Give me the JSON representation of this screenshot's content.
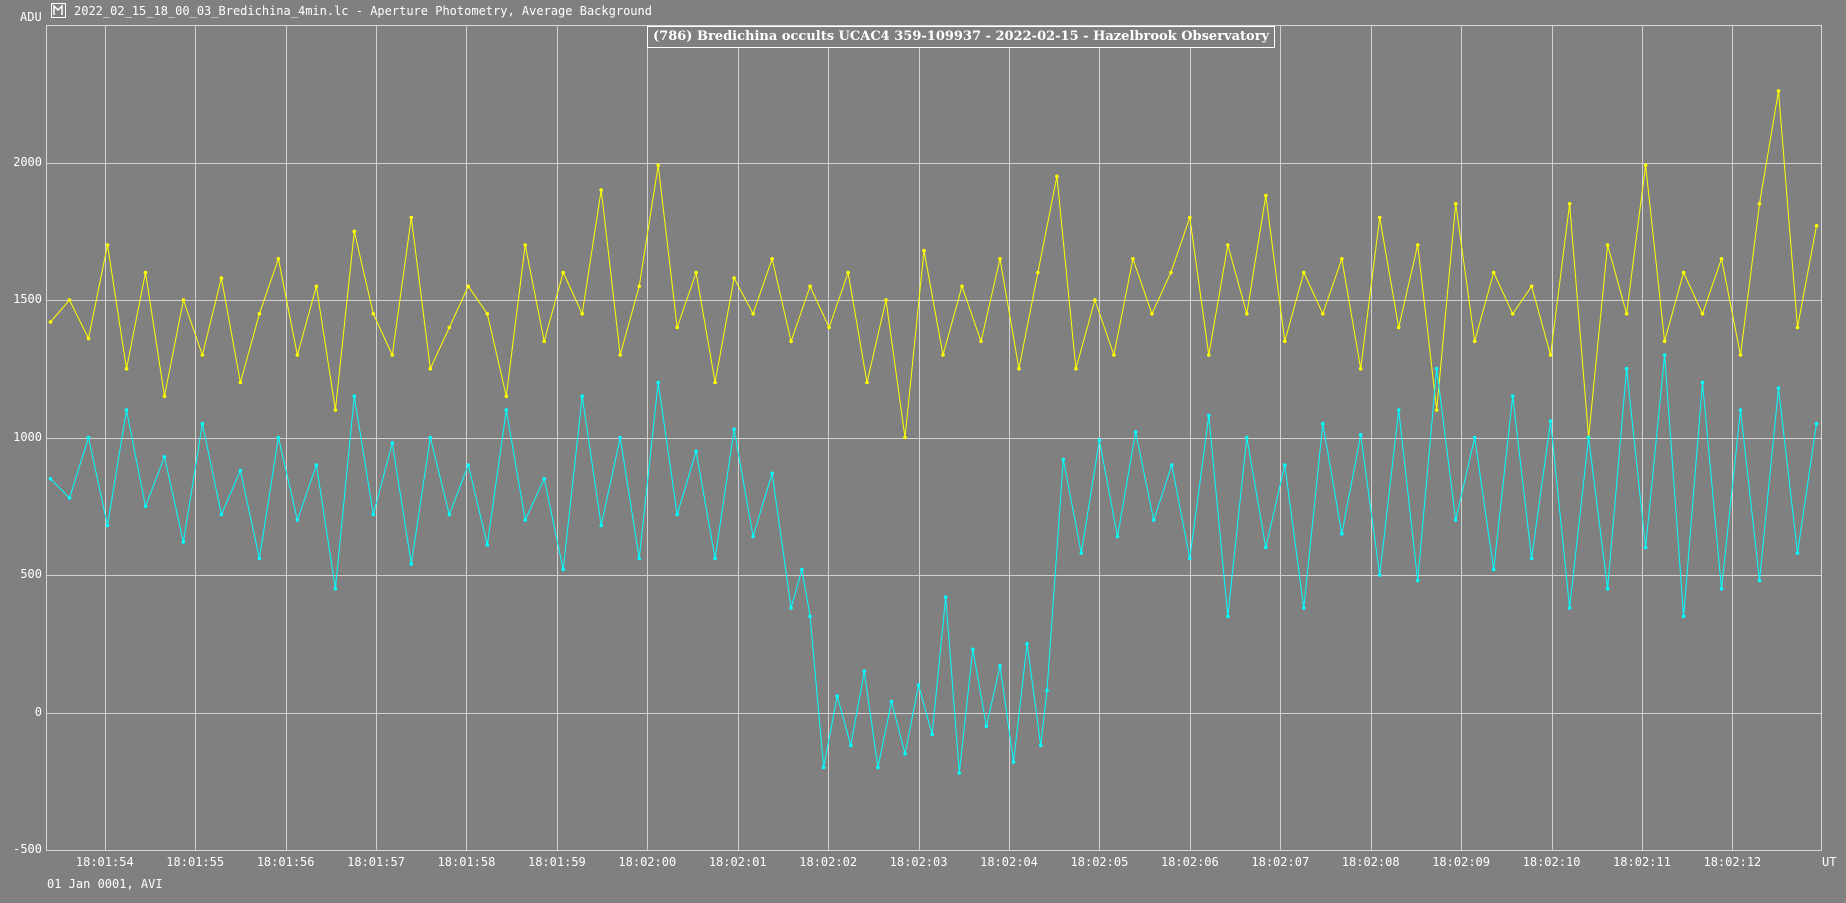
{
  "window": {
    "title": "2022_02_15_18_00_03_Bredichina_4min.lc - Aperture Photometry, Average Background",
    "icon": "light-curve-app-icon"
  },
  "footer": {
    "text": "01 Jan 0001, AVI"
  },
  "chart_data": {
    "type": "line",
    "title": "(786) Bredichina occults UCAC4 359-109937 - 2022-02-15 - Hazelbrook Observatory",
    "ylabel": "ADU",
    "xlabel": "UT",
    "ylim": [
      -500,
      2500
    ],
    "xlim": [
      "18:01:53.35",
      "18:02:12.98"
    ],
    "y_ticks": [
      -500,
      0,
      500,
      1000,
      1500,
      2000
    ],
    "x_ticks": [
      "18:01:54",
      "18:01:55",
      "18:01:56",
      "18:01:57",
      "18:01:58",
      "18:01:59",
      "18:02:00",
      "18:02:01",
      "18:02:02",
      "18:02:03",
      "18:02:04",
      "18:02:05",
      "18:02:06",
      "18:02:07",
      "18:02:08",
      "18:02:09",
      "18:02:10",
      "18:02:11",
      "18:02:12"
    ],
    "grid": true,
    "marker": "dots",
    "series": [
      {
        "color": "#ffff00",
        "x": [
          "18:01:53.40",
          "18:01:53.61",
          "18:01:53.82",
          "18:01:54.03",
          "18:01:54.24",
          "18:01:54.45",
          "18:01:54.66",
          "18:01:54.87",
          "18:01:55.08",
          "18:01:55.29",
          "18:01:55.50",
          "18:01:55.71",
          "18:01:55.92",
          "18:01:56.13",
          "18:01:56.34",
          "18:01:56.55",
          "18:01:56.76",
          "18:01:56.97",
          "18:01:57.18",
          "18:01:57.39",
          "18:01:57.60",
          "18:01:57.81",
          "18:01:58.02",
          "18:01:58.23",
          "18:01:58.44",
          "18:01:58.65",
          "18:01:58.86",
          "18:01:59.07",
          "18:01:59.28",
          "18:01:59.49",
          "18:01:59.70",
          "18:01:59.91",
          "18:02:00.12",
          "18:02:00.33",
          "18:02:00.54",
          "18:02:00.75",
          "18:02:00.96",
          "18:02:01.17",
          "18:02:01.38",
          "18:02:01.59",
          "18:02:01.80",
          "18:02:02.01",
          "18:02:02.22",
          "18:02:02.43",
          "18:02:02.64",
          "18:02:02.85",
          "18:02:03.06",
          "18:02:03.27",
          "18:02:03.48",
          "18:02:03.69",
          "18:02:03.90",
          "18:02:04.11",
          "18:02:04.32",
          "18:02:04.53",
          "18:02:04.74",
          "18:02:04.95",
          "18:02:05.16",
          "18:02:05.37",
          "18:02:05.58",
          "18:02:05.79",
          "18:02:06.00",
          "18:02:06.21",
          "18:02:06.42",
          "18:02:06.63",
          "18:02:06.84",
          "18:02:07.05",
          "18:02:07.26",
          "18:02:07.47",
          "18:02:07.68",
          "18:02:07.89",
          "18:02:08.10",
          "18:02:08.31",
          "18:02:08.52",
          "18:02:08.73",
          "18:02:08.94",
          "18:02:09.15",
          "18:02:09.36",
          "18:02:09.57",
          "18:02:09.78",
          "18:02:09.99",
          "18:02:10.20",
          "18:02:10.41",
          "18:02:10.62",
          "18:02:10.83",
          "18:02:11.04",
          "18:02:11.25",
          "18:02:11.46",
          "18:02:11.67",
          "18:02:11.88",
          "18:02:12.09",
          "18:02:12.30",
          "18:02:12.51",
          "18:02:12.72",
          "18:02:12.93"
        ],
        "values": [
          1420,
          1500,
          1360,
          1700,
          1250,
          1600,
          1150,
          1500,
          1300,
          1580,
          1200,
          1450,
          1650,
          1300,
          1550,
          1100,
          1750,
          1450,
          1300,
          1800,
          1250,
          1400,
          1550,
          1450,
          1150,
          1700,
          1350,
          1600,
          1450,
          1900,
          1300,
          1550,
          1990,
          1400,
          1600,
          1200,
          1580,
          1450,
          1650,
          1350,
          1550,
          1400,
          1600,
          1200,
          1500,
          1000,
          1680,
          1300,
          1550,
          1350,
          1650,
          1250,
          1600,
          1950,
          1250,
          1500,
          1300,
          1650,
          1450,
          1600,
          1800,
          1300,
          1700,
          1450,
          1880,
          1350,
          1600,
          1450,
          1650,
          1250,
          1800,
          1400,
          1700,
          1100,
          1850,
          1350,
          1600,
          1450,
          1550,
          1300,
          1850,
          1000,
          1700,
          1450,
          1990,
          1350,
          1600,
          1450,
          1650,
          1300,
          1850,
          2260,
          1400,
          1770
        ]
      },
      {
        "color": "#00ffff",
        "x": [
          "18:01:53.40",
          "18:01:53.61",
          "18:01:53.82",
          "18:01:54.03",
          "18:01:54.24",
          "18:01:54.45",
          "18:01:54.66",
          "18:01:54.87",
          "18:01:55.08",
          "18:01:55.29",
          "18:01:55.50",
          "18:01:55.71",
          "18:01:55.92",
          "18:01:56.13",
          "18:01:56.34",
          "18:01:56.55",
          "18:01:56.76",
          "18:01:56.97",
          "18:01:57.18",
          "18:01:57.39",
          "18:01:57.60",
          "18:01:57.81",
          "18:01:58.02",
          "18:01:58.23",
          "18:01:58.44",
          "18:01:58.65",
          "18:01:58.86",
          "18:01:59.07",
          "18:01:59.28",
          "18:01:59.49",
          "18:01:59.70",
          "18:01:59.91",
          "18:02:00.12",
          "18:02:00.33",
          "18:02:00.54",
          "18:02:00.75",
          "18:02:00.96",
          "18:02:01.17",
          "18:02:01.38",
          "18:02:01.59",
          "18:02:01.71",
          "18:02:01.80",
          "18:02:01.95",
          "18:02:02.10",
          "18:02:02.25",
          "18:02:02.40",
          "18:02:02.55",
          "18:02:02.70",
          "18:02:02.85",
          "18:02:03.00",
          "18:02:03.15",
          "18:02:03.30",
          "18:02:03.45",
          "18:02:03.60",
          "18:02:03.75",
          "18:02:03.90",
          "18:02:04.05",
          "18:02:04.20",
          "18:02:04.35",
          "18:02:04.42",
          "18:02:04.60",
          "18:02:04.80",
          "18:02:05.00",
          "18:02:05.20",
          "18:02:05.40",
          "18:02:05.60",
          "18:02:05.80",
          "18:02:06.00",
          "18:02:06.21",
          "18:02:06.42",
          "18:02:06.63",
          "18:02:06.84",
          "18:02:07.05",
          "18:02:07.26",
          "18:02:07.47",
          "18:02:07.68",
          "18:02:07.89",
          "18:02:08.10",
          "18:02:08.31",
          "18:02:08.52",
          "18:02:08.73",
          "18:02:08.94",
          "18:02:09.15",
          "18:02:09.36",
          "18:02:09.57",
          "18:02:09.78",
          "18:02:09.99",
          "18:02:10.20",
          "18:02:10.41",
          "18:02:10.62",
          "18:02:10.83",
          "18:02:11.04",
          "18:02:11.25",
          "18:02:11.46",
          "18:02:11.67",
          "18:02:11.88",
          "18:02:12.09",
          "18:02:12.30",
          "18:02:12.51",
          "18:02:12.72",
          "18:02:12.93"
        ],
        "values": [
          850,
          780,
          1000,
          680,
          1100,
          750,
          930,
          620,
          1050,
          720,
          880,
          560,
          1000,
          700,
          900,
          450,
          1150,
          720,
          980,
          540,
          1000,
          720,
          900,
          610,
          1100,
          700,
          850,
          520,
          1150,
          680,
          1000,
          560,
          1200,
          720,
          950,
          560,
          1030,
          640,
          870,
          380,
          520,
          350,
          -200,
          60,
          -120,
          150,
          -200,
          40,
          -150,
          100,
          -80,
          420,
          -220,
          230,
          -50,
          170,
          -180,
          250,
          -120,
          80,
          920,
          580,
          990,
          640,
          1020,
          700,
          900,
          560,
          1080,
          350,
          1000,
          600,
          900,
          380,
          1050,
          650,
          1010,
          500,
          1100,
          480,
          1250,
          700,
          1000,
          520,
          1150,
          560,
          1060,
          380,
          1000,
          450,
          1250,
          600,
          1300,
          350,
          1200,
          450,
          1100,
          480,
          1180,
          580,
          1050
        ]
      }
    ]
  }
}
